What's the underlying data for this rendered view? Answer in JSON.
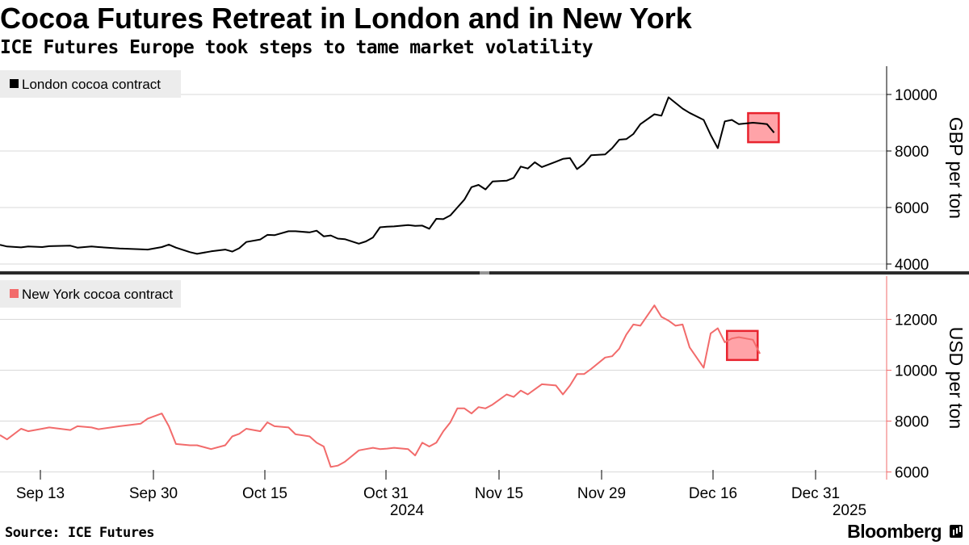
{
  "header": {
    "title": "Cocoa Futures Retreat in London and in New York",
    "subtitle": "ICE Futures Europe took steps to tame market volatility"
  },
  "footer": {
    "source": "Source: ICE Futures",
    "brand": "Bloomberg"
  },
  "colors": {
    "london_line": "#000000",
    "ny_line": "#f26b6b",
    "highlight_fill": "#ffa3a8",
    "highlight_border": "#e8232e",
    "grid": "#d9d9d9",
    "legend_bg": "#ececec"
  },
  "chart_data": [
    {
      "type": "line",
      "title": "London cocoa contract",
      "legend": "London cocoa contract",
      "ylabel": "GBP per ton",
      "ylim": [
        3800,
        11000
      ],
      "yticks": [
        4000,
        6000,
        8000,
        10000
      ],
      "x_start": "2024-09-06",
      "x_end": "2025-01-10",
      "series": [
        {
          "name": "London cocoa contract",
          "color": "#000000",
          "points": [
            [
              "2024-09-06",
              4680
            ],
            [
              "2024-09-07",
              4620
            ],
            [
              "2024-09-09",
              4590
            ],
            [
              "2024-09-10",
              4620
            ],
            [
              "2024-09-12",
              4600
            ],
            [
              "2024-09-13",
              4630
            ],
            [
              "2024-09-16",
              4650
            ],
            [
              "2024-09-17",
              4580
            ],
            [
              "2024-09-19",
              4620
            ],
            [
              "2024-09-20",
              4600
            ],
            [
              "2024-09-23",
              4550
            ],
            [
              "2024-09-26",
              4520
            ],
            [
              "2024-09-27",
              4510
            ],
            [
              "2024-09-29",
              4600
            ],
            [
              "2024-09-30",
              4690
            ],
            [
              "2024-10-01",
              4580
            ],
            [
              "2024-10-03",
              4420
            ],
            [
              "2024-10-04",
              4360
            ],
            [
              "2024-10-06",
              4450
            ],
            [
              "2024-10-08",
              4510
            ],
            [
              "2024-10-09",
              4440
            ],
            [
              "2024-10-10",
              4560
            ],
            [
              "2024-10-11",
              4780
            ],
            [
              "2024-10-13",
              4870
            ],
            [
              "2024-10-14",
              5030
            ],
            [
              "2024-10-15",
              5020
            ],
            [
              "2024-10-17",
              5160
            ],
            [
              "2024-10-18",
              5160
            ],
            [
              "2024-10-20",
              5120
            ],
            [
              "2024-10-21",
              5180
            ],
            [
              "2024-10-22",
              4980
            ],
            [
              "2024-10-23",
              5010
            ],
            [
              "2024-10-24",
              4900
            ],
            [
              "2024-10-25",
              4880
            ],
            [
              "2024-10-27",
              4720
            ],
            [
              "2024-10-28",
              4800
            ],
            [
              "2024-10-29",
              4940
            ],
            [
              "2024-10-30",
              5300
            ],
            [
              "2024-10-31",
              5320
            ],
            [
              "2024-11-01",
              5330
            ],
            [
              "2024-11-03",
              5380
            ],
            [
              "2024-11-04",
              5350
            ],
            [
              "2024-11-05",
              5360
            ],
            [
              "2024-11-06",
              5250
            ],
            [
              "2024-11-07",
              5600
            ],
            [
              "2024-11-08",
              5590
            ],
            [
              "2024-11-09",
              5720
            ],
            [
              "2024-11-10",
              6000
            ],
            [
              "2024-11-11",
              6280
            ],
            [
              "2024-11-12",
              6720
            ],
            [
              "2024-11-13",
              6800
            ],
            [
              "2024-11-14",
              6640
            ],
            [
              "2024-11-15",
              6920
            ],
            [
              "2024-11-17",
              6950
            ],
            [
              "2024-11-18",
              7050
            ],
            [
              "2024-11-19",
              7450
            ],
            [
              "2024-11-20",
              7380
            ],
            [
              "2024-11-21",
              7600
            ],
            [
              "2024-11-22",
              7430
            ],
            [
              "2024-11-24",
              7620
            ],
            [
              "2024-11-25",
              7720
            ],
            [
              "2024-11-26",
              7750
            ],
            [
              "2024-11-27",
              7360
            ],
            [
              "2024-11-28",
              7550
            ],
            [
              "2024-11-29",
              7850
            ],
            [
              "2024-12-01",
              7880
            ],
            [
              "2024-12-02",
              8100
            ],
            [
              "2024-12-03",
              8400
            ],
            [
              "2024-12-04",
              8420
            ],
            [
              "2024-12-05",
              8600
            ],
            [
              "2024-12-06",
              8950
            ],
            [
              "2024-12-08",
              9300
            ],
            [
              "2024-12-09",
              9250
            ],
            [
              "2024-12-10",
              9900
            ],
            [
              "2024-12-11",
              9700
            ],
            [
              "2024-12-12",
              9500
            ],
            [
              "2024-12-13",
              9350
            ],
            [
              "2024-12-15",
              9100
            ],
            [
              "2024-12-16",
              8570
            ],
            [
              "2024-12-17",
              8100
            ],
            [
              "2024-12-18",
              9050
            ],
            [
              "2024-12-19",
              9100
            ],
            [
              "2024-12-20",
              8950
            ],
            [
              "2024-12-22",
              9000
            ],
            [
              "2024-12-23",
              8980
            ],
            [
              "2024-12-24",
              8950
            ],
            [
              "2024-12-25",
              8650
            ]
          ]
        }
      ]
    },
    {
      "type": "line",
      "title": "New York cocoa contract",
      "legend": "New York cocoa contract",
      "ylabel": "USD per ton",
      "ylim": [
        5700,
        13700
      ],
      "yticks": [
        6000,
        8000,
        10000,
        12000
      ],
      "x_start": "2024-09-06",
      "x_end": "2025-01-10",
      "xticks": [
        "Sep 13",
        "Sep 30",
        "Oct 15",
        "Oct 31",
        "Nov 15",
        "Nov 29",
        "Dec 16",
        "Dec 31"
      ],
      "year_labels": [
        "2024",
        "2025"
      ],
      "series": [
        {
          "name": "New York cocoa contract",
          "color": "#f26b6b",
          "points": [
            [
              "2024-09-06",
              7450
            ],
            [
              "2024-09-07",
              7280
            ],
            [
              "2024-09-09",
              7700
            ],
            [
              "2024-09-10",
              7600
            ],
            [
              "2024-09-12",
              7700
            ],
            [
              "2024-09-13",
              7750
            ],
            [
              "2024-09-16",
              7650
            ],
            [
              "2024-09-17",
              7800
            ],
            [
              "2024-09-19",
              7750
            ],
            [
              "2024-09-20",
              7680
            ],
            [
              "2024-09-23",
              7800
            ],
            [
              "2024-09-26",
              7900
            ],
            [
              "2024-09-27",
              8100
            ],
            [
              "2024-09-29",
              8300
            ],
            [
              "2024-09-30",
              7800
            ],
            [
              "2024-10-01",
              7100
            ],
            [
              "2024-10-03",
              7050
            ],
            [
              "2024-10-04",
              7050
            ],
            [
              "2024-10-06",
              6900
            ],
            [
              "2024-10-08",
              7050
            ],
            [
              "2024-10-09",
              7400
            ],
            [
              "2024-10-10",
              7500
            ],
            [
              "2024-10-11",
              7700
            ],
            [
              "2024-10-13",
              7600
            ],
            [
              "2024-10-14",
              7950
            ],
            [
              "2024-10-15",
              7800
            ],
            [
              "2024-10-17",
              7750
            ],
            [
              "2024-10-18",
              7480
            ],
            [
              "2024-10-20",
              7400
            ],
            [
              "2024-10-21",
              7150
            ],
            [
              "2024-10-22",
              7000
            ],
            [
              "2024-10-23",
              6200
            ],
            [
              "2024-10-24",
              6250
            ],
            [
              "2024-10-25",
              6400
            ],
            [
              "2024-10-27",
              6850
            ],
            [
              "2024-10-28",
              6900
            ],
            [
              "2024-10-29",
              6950
            ],
            [
              "2024-10-30",
              6900
            ],
            [
              "2024-10-31",
              6920
            ],
            [
              "2024-11-01",
              6950
            ],
            [
              "2024-11-03",
              6900
            ],
            [
              "2024-11-04",
              6650
            ],
            [
              "2024-11-05",
              7150
            ],
            [
              "2024-11-06",
              7000
            ],
            [
              "2024-11-07",
              7150
            ],
            [
              "2024-11-08",
              7600
            ],
            [
              "2024-11-09",
              7950
            ],
            [
              "2024-11-10",
              8500
            ],
            [
              "2024-11-11",
              8500
            ],
            [
              "2024-11-12",
              8300
            ],
            [
              "2024-11-13",
              8550
            ],
            [
              "2024-11-14",
              8500
            ],
            [
              "2024-11-15",
              8650
            ],
            [
              "2024-11-17",
              9050
            ],
            [
              "2024-11-18",
              8950
            ],
            [
              "2024-11-19",
              9200
            ],
            [
              "2024-11-20",
              9050
            ],
            [
              "2024-11-21",
              9250
            ],
            [
              "2024-11-22",
              9450
            ],
            [
              "2024-11-24",
              9400
            ],
            [
              "2024-11-25",
              9050
            ],
            [
              "2024-11-26",
              9400
            ],
            [
              "2024-11-27",
              9850
            ],
            [
              "2024-11-28",
              9850
            ],
            [
              "2024-11-29",
              10050
            ],
            [
              "2024-12-01",
              10500
            ],
            [
              "2024-12-02",
              10550
            ],
            [
              "2024-12-03",
              10850
            ],
            [
              "2024-12-04",
              11400
            ],
            [
              "2024-12-05",
              11800
            ],
            [
              "2024-12-06",
              11750
            ],
            [
              "2024-12-08",
              12550
            ],
            [
              "2024-12-09",
              12100
            ],
            [
              "2024-12-10",
              11950
            ],
            [
              "2024-12-11",
              11750
            ],
            [
              "2024-12-12",
              11800
            ],
            [
              "2024-12-13",
              10900
            ],
            [
              "2024-12-15",
              10100
            ],
            [
              "2024-12-16",
              11450
            ],
            [
              "2024-12-17",
              11650
            ],
            [
              "2024-12-18",
              11100
            ],
            [
              "2024-12-19",
              11250
            ],
            [
              "2024-12-20",
              11300
            ],
            [
              "2024-12-22",
              11200
            ],
            [
              "2024-12-23",
              10650
            ]
          ]
        }
      ]
    }
  ]
}
